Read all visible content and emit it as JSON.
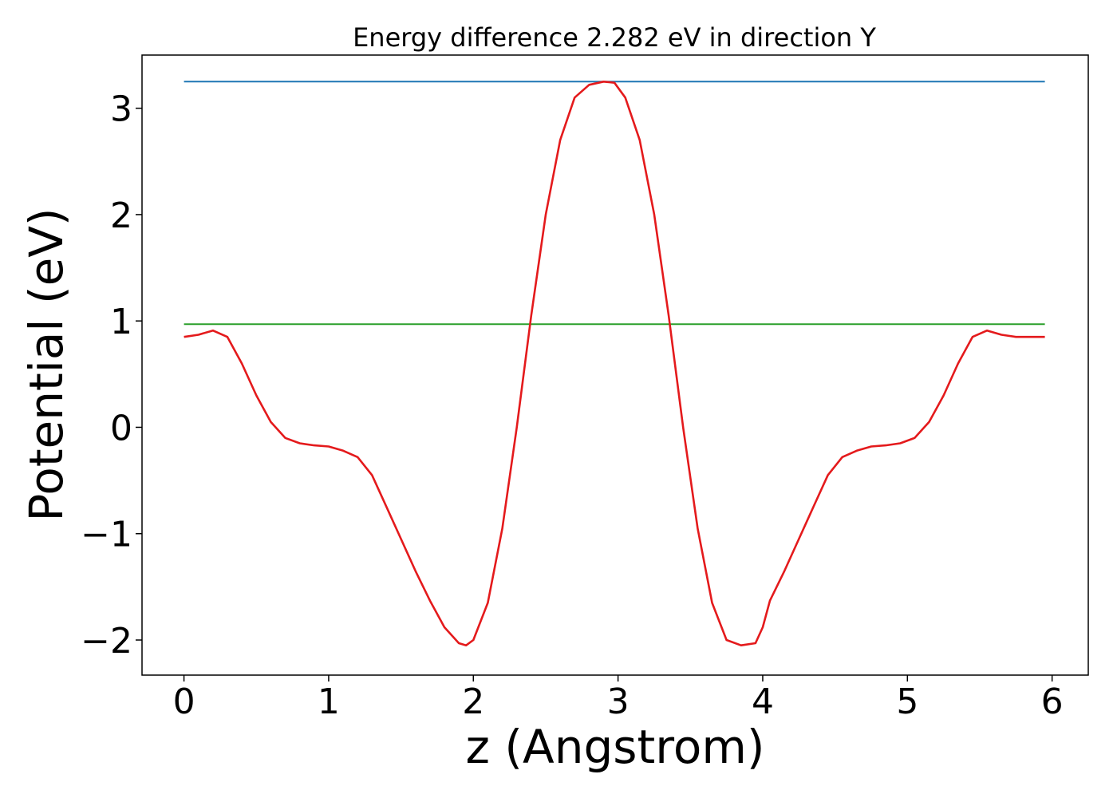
{
  "chart_data": {
    "type": "line",
    "title": "Energy difference 2.282 eV in direction Y",
    "xlabel": "z (Angstrom)",
    "ylabel": "Potential (eV)",
    "xlim": [
      -0.29,
      6.25
    ],
    "ylim": [
      -2.33,
      3.5
    ],
    "x_ticks": [
      0,
      1,
      2,
      3,
      4,
      5,
      6
    ],
    "x_tick_labels": [
      "0",
      "1",
      "2",
      "3",
      "4",
      "5",
      "6"
    ],
    "y_ticks": [
      -2,
      -1,
      0,
      1,
      2,
      3
    ],
    "y_tick_labels": [
      "−2",
      "−1",
      "0",
      "1",
      "2",
      "3"
    ],
    "grid": false,
    "series": [
      {
        "color": "#1f77b4",
        "x": [
          0,
          5.95
        ],
        "y": [
          3.25,
          3.25
        ]
      },
      {
        "color": "#2ca02c",
        "x": [
          0,
          5.95
        ],
        "y": [
          0.97,
          0.97
        ]
      },
      {
        "color": "#e41a1c",
        "x": [
          0,
          0.1,
          0.2,
          0.3,
          0.4,
          0.5,
          0.6,
          0.7,
          0.8,
          0.9,
          1.0,
          1.1,
          1.2,
          1.3,
          1.4,
          1.5,
          1.6,
          1.7,
          1.8,
          1.9,
          1.95,
          2.0,
          2.1,
          2.2,
          2.3,
          2.4,
          2.5,
          2.6,
          2.7,
          2.8,
          2.9,
          2.975,
          3.05,
          3.15,
          3.25,
          3.35,
          3.45,
          3.55,
          3.65,
          3.75,
          3.85,
          3.95,
          4.0,
          4.05,
          4.15,
          4.25,
          4.35,
          4.45,
          4.55,
          4.65,
          4.75,
          4.85,
          4.95,
          5.05,
          5.15,
          5.25,
          5.35,
          5.45,
          5.55,
          5.65,
          5.75,
          5.85,
          5.95
        ],
        "y": [
          0.85,
          0.87,
          0.91,
          0.85,
          0.6,
          0.3,
          0.05,
          -0.1,
          -0.15,
          -0.17,
          -0.18,
          -0.22,
          -0.28,
          -0.45,
          -0.75,
          -1.05,
          -1.35,
          -1.63,
          -1.88,
          -2.03,
          -2.05,
          -2.0,
          -1.65,
          -0.95,
          0.0,
          1.05,
          2.0,
          2.7,
          3.1,
          3.22,
          3.25,
          3.24,
          3.1,
          2.7,
          2.0,
          1.05,
          0.0,
          -0.95,
          -1.65,
          -2.0,
          -2.05,
          -2.03,
          -1.88,
          -1.63,
          -1.35,
          -1.05,
          -0.75,
          -0.45,
          -0.28,
          -0.22,
          -0.18,
          -0.17,
          -0.15,
          -0.1,
          0.05,
          0.3,
          0.6,
          0.85,
          0.91,
          0.87,
          0.85,
          0.85,
          0.85
        ]
      }
    ]
  }
}
